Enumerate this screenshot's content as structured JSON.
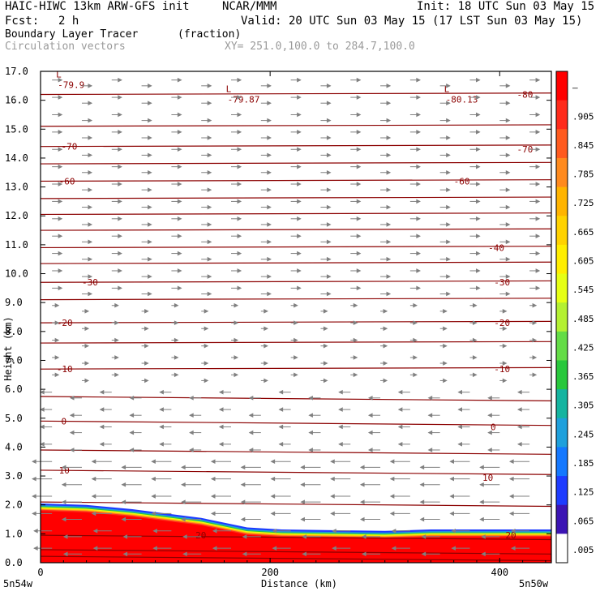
{
  "header": {
    "title": "HAIC-HIWC 13km ARW-GFS init",
    "org": "NCAR/MMM",
    "init": "Init: 18 UTC Sun 03 May 15",
    "fcst_label": "Fcst:",
    "fcst_value": "2 h",
    "valid": "Valid: 20 UTC Sun 03 May 15 (17 LST Sun 03 May 15)",
    "field_name": "Boundary Layer Tracer",
    "field_units": "(fraction)",
    "vector_label": "Circulation vectors",
    "xy_label": "XY= 251.0,100.0 to 284.7,100.0"
  },
  "colors": {
    "contour": "#8b0000",
    "vector": "#808080",
    "text": "#000000"
  },
  "chart_data": {
    "type": "heatmap",
    "xlabel": "Distance (km)",
    "ylabel": "Height (km)",
    "xlim": [
      0,
      445
    ],
    "ylim": [
      0,
      17
    ],
    "x_ticks": [
      0,
      200,
      400
    ],
    "x_tick_labels": [
      "0",
      "200",
      "400"
    ],
    "y_ticks": [
      0,
      1,
      2,
      3,
      4,
      5,
      6,
      7,
      8,
      9,
      10,
      11,
      12,
      13,
      14,
      15,
      16,
      17
    ],
    "y_tick_labels": [
      "0.0",
      "1.0",
      "2.0",
      "3.0",
      "4.0",
      "5.0",
      "6.0",
      "7.0",
      "8.0",
      "9.0",
      "10.0",
      "11.0",
      "12.0",
      "13.0",
      "14.0",
      "15.0",
      "16.0",
      "17.0"
    ],
    "x_end_labels": [
      "5n54w",
      "5n50w"
    ],
    "colorbar": {
      "tick_labels": [
        "–",
        ".905",
        ".845",
        ".785",
        ".725",
        ".665",
        ".605",
        ".545",
        ".485",
        ".425",
        ".365",
        ".305",
        ".245",
        ".185",
        ".125",
        ".065",
        ".005"
      ],
      "colors": [
        "#ff0000",
        "#ff2a1a",
        "#ff5a1e",
        "#ff8a1e",
        "#ffb400",
        "#ffd200",
        "#ffee00",
        "#e6ff14",
        "#b4f032",
        "#64dc46",
        "#28c83c",
        "#14b4a0",
        "#1ea0dc",
        "#1478ff",
        "#1e3cff",
        "#3c14b4",
        "#ffffff"
      ]
    },
    "tracer_top_km": [
      [
        0,
        2.05
      ],
      [
        40,
        2.0
      ],
      [
        80,
        1.85
      ],
      [
        100,
        1.75
      ],
      [
        140,
        1.55
      ],
      [
        180,
        1.22
      ],
      [
        210,
        1.15
      ],
      [
        300,
        1.1
      ],
      [
        340,
        1.15
      ],
      [
        445,
        1.15
      ]
    ],
    "temperature_contour_labels": [
      "-70",
      "-60",
      "-30",
      "-20",
      "-10",
      "0",
      "10",
      "20",
      "-40",
      "-80"
    ],
    "low_markers": [
      {
        "letter": "L",
        "value": "-79.9"
      },
      {
        "letter": "L",
        "value": "-79.87"
      },
      {
        "letter": "L",
        "value": "-80.13"
      }
    ],
    "wind_note": "easterly near surface, westerly aloft"
  }
}
